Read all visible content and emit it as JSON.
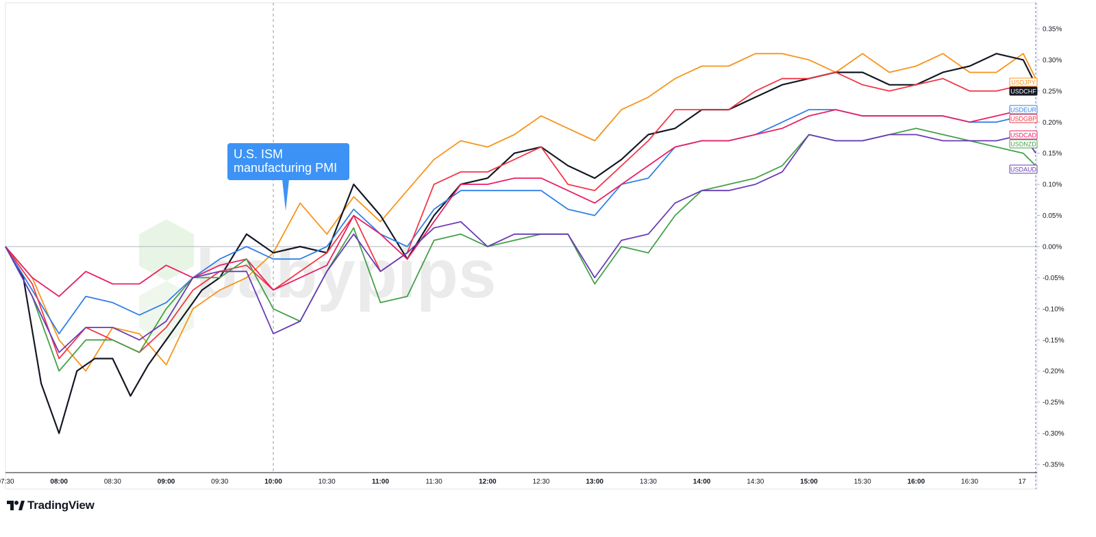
{
  "chart_data": {
    "type": "line",
    "title": "",
    "xlabel": "",
    "ylabel": "",
    "x_ticks": [
      "07:30",
      "08:00",
      "08:30",
      "09:00",
      "09:30",
      "10:00",
      "10:30",
      "11:00",
      "11:30",
      "12:00",
      "12:30",
      "13:00",
      "13:30",
      "14:00",
      "14:30",
      "15:00",
      "15:30",
      "16:00",
      "16:30",
      "17"
    ],
    "y_ticks": [
      "0.35%",
      "0.30%",
      "0.25%",
      "0.20%",
      "0.15%",
      "0.10%",
      "0.05%",
      "0.00%",
      "-0.05%",
      "-0.10%",
      "-0.15%",
      "-0.20%",
      "-0.25%",
      "-0.30%",
      "-0.35%"
    ],
    "y_tick_values": [
      0.35,
      0.3,
      0.25,
      0.2,
      0.15,
      0.1,
      0.05,
      0.0,
      -0.05,
      -0.1,
      -0.15,
      -0.2,
      -0.25,
      -0.3,
      -0.35
    ],
    "ylim": [
      -0.36,
      0.39
    ],
    "x_range_minutes": [
      0,
      577
    ],
    "zero_line": 0.0,
    "event_marker_minute": 150,
    "grid": false,
    "legend": "right-edge labels",
    "series": [
      {
        "name": "USDJPY",
        "color": "#f7931a",
        "x": [
          0,
          15,
          30,
          45,
          60,
          75,
          90,
          105,
          120,
          135,
          150,
          165,
          180,
          195,
          210,
          225,
          240,
          255,
          270,
          285,
          300,
          315,
          330,
          345,
          360,
          375,
          390,
          405,
          420,
          435,
          450,
          465,
          480,
          495,
          510,
          525,
          540,
          555,
          570,
          577
        ],
        "y": [
          0.0,
          -0.05,
          -0.15,
          -0.2,
          -0.13,
          -0.14,
          -0.19,
          -0.1,
          -0.07,
          -0.05,
          -0.01,
          0.07,
          0.02,
          0.08,
          0.04,
          0.09,
          0.14,
          0.17,
          0.16,
          0.18,
          0.21,
          0.19,
          0.17,
          0.22,
          0.24,
          0.27,
          0.29,
          0.29,
          0.31,
          0.31,
          0.3,
          0.28,
          0.31,
          0.28,
          0.29,
          0.31,
          0.28,
          0.28,
          0.31,
          0.27
        ]
      },
      {
        "name": "USDCHF",
        "color": "#131722",
        "x": [
          0,
          10,
          20,
          30,
          40,
          50,
          60,
          70,
          80,
          90,
          100,
          110,
          120,
          135,
          150,
          165,
          180,
          195,
          210,
          225,
          240,
          255,
          270,
          285,
          300,
          315,
          330,
          345,
          360,
          375,
          390,
          405,
          420,
          435,
          450,
          465,
          480,
          495,
          510,
          525,
          540,
          555,
          570,
          577
        ],
        "y": [
          0.0,
          -0.05,
          -0.22,
          -0.3,
          -0.2,
          -0.18,
          -0.18,
          -0.24,
          -0.19,
          -0.15,
          -0.11,
          -0.07,
          -0.05,
          0.02,
          -0.01,
          0.0,
          -0.01,
          0.1,
          0.05,
          -0.02,
          0.05,
          0.1,
          0.11,
          0.15,
          0.16,
          0.13,
          0.11,
          0.14,
          0.18,
          0.19,
          0.22,
          0.22,
          0.24,
          0.26,
          0.27,
          0.28,
          0.28,
          0.26,
          0.26,
          0.28,
          0.29,
          0.31,
          0.3,
          0.26
        ]
      },
      {
        "name": "USDEUR",
        "color": "#2f7fe8",
        "x": [
          0,
          15,
          30,
          45,
          60,
          75,
          90,
          105,
          120,
          135,
          150,
          165,
          180,
          195,
          210,
          225,
          240,
          255,
          270,
          285,
          300,
          315,
          330,
          345,
          360,
          375,
          390,
          405,
          420,
          435,
          450,
          465,
          480,
          495,
          510,
          525,
          540,
          555,
          570,
          577
        ],
        "y": [
          0.0,
          -0.07,
          -0.14,
          -0.08,
          -0.09,
          -0.11,
          -0.09,
          -0.05,
          -0.02,
          0.0,
          -0.02,
          -0.02,
          0.0,
          0.06,
          0.02,
          0.0,
          0.06,
          0.09,
          0.09,
          0.09,
          0.09,
          0.06,
          0.05,
          0.1,
          0.11,
          0.16,
          0.17,
          0.17,
          0.18,
          0.2,
          0.22,
          0.22,
          0.21,
          0.21,
          0.21,
          0.21,
          0.2,
          0.2,
          0.21,
          0.22
        ]
      },
      {
        "name": "USDGBP",
        "color": "#f23645",
        "x": [
          0,
          15,
          30,
          45,
          60,
          75,
          90,
          105,
          120,
          135,
          150,
          165,
          180,
          195,
          210,
          225,
          240,
          255,
          270,
          285,
          300,
          315,
          330,
          345,
          360,
          375,
          390,
          405,
          420,
          435,
          450,
          465,
          480,
          495,
          510,
          525,
          540,
          555,
          570,
          577
        ],
        "y": [
          0.0,
          -0.06,
          -0.18,
          -0.13,
          -0.15,
          -0.17,
          -0.13,
          -0.07,
          -0.04,
          -0.03,
          -0.07,
          -0.04,
          -0.01,
          0.05,
          -0.04,
          -0.01,
          0.1,
          0.12,
          0.12,
          0.14,
          0.16,
          0.1,
          0.09,
          0.13,
          0.17,
          0.22,
          0.22,
          0.22,
          0.25,
          0.27,
          0.27,
          0.28,
          0.26,
          0.25,
          0.26,
          0.27,
          0.25,
          0.25,
          0.26,
          0.25
        ]
      },
      {
        "name": "USDCAD",
        "color": "#e91e63",
        "x": [
          0,
          15,
          30,
          45,
          60,
          75,
          90,
          105,
          120,
          135,
          150,
          165,
          180,
          195,
          210,
          225,
          240,
          255,
          270,
          285,
          300,
          315,
          330,
          345,
          360,
          375,
          390,
          405,
          420,
          435,
          450,
          465,
          480,
          495,
          510,
          525,
          540,
          555,
          570,
          577
        ],
        "y": [
          0.0,
          -0.05,
          -0.08,
          -0.04,
          -0.06,
          -0.06,
          -0.03,
          -0.05,
          -0.03,
          -0.02,
          -0.07,
          -0.05,
          -0.03,
          0.05,
          0.02,
          -0.02,
          0.04,
          0.1,
          0.1,
          0.11,
          0.11,
          0.09,
          0.07,
          0.1,
          0.13,
          0.16,
          0.17,
          0.17,
          0.18,
          0.19,
          0.21,
          0.22,
          0.21,
          0.21,
          0.21,
          0.21,
          0.2,
          0.21,
          0.22,
          0.22
        ]
      },
      {
        "name": "USDNZD",
        "color": "#43a047",
        "x": [
          0,
          15,
          30,
          45,
          60,
          75,
          90,
          105,
          120,
          135,
          150,
          165,
          180,
          195,
          210,
          225,
          240,
          255,
          270,
          285,
          300,
          315,
          330,
          345,
          360,
          375,
          390,
          405,
          420,
          435,
          450,
          465,
          480,
          495,
          510,
          525,
          540,
          555,
          570,
          577
        ],
        "y": [
          0.0,
          -0.08,
          -0.2,
          -0.15,
          -0.15,
          -0.17,
          -0.1,
          -0.05,
          -0.05,
          -0.02,
          -0.1,
          -0.12,
          -0.04,
          0.03,
          -0.09,
          -0.08,
          0.01,
          0.02,
          0.0,
          0.01,
          0.02,
          0.02,
          -0.06,
          0.0,
          -0.01,
          0.05,
          0.09,
          0.1,
          0.11,
          0.13,
          0.18,
          0.17,
          0.17,
          0.18,
          0.19,
          0.18,
          0.17,
          0.16,
          0.15,
          0.13
        ]
      },
      {
        "name": "USDAUD",
        "color": "#673ab7",
        "x": [
          0,
          15,
          30,
          45,
          60,
          75,
          90,
          105,
          120,
          135,
          150,
          165,
          180,
          195,
          210,
          225,
          240,
          255,
          270,
          285,
          300,
          315,
          330,
          345,
          360,
          375,
          390,
          405,
          420,
          435,
          450,
          465,
          480,
          495,
          510,
          525,
          540,
          555,
          570,
          577
        ],
        "y": [
          0.0,
          -0.08,
          -0.17,
          -0.13,
          -0.13,
          -0.15,
          -0.12,
          -0.05,
          -0.04,
          -0.04,
          -0.14,
          -0.12,
          -0.04,
          0.02,
          -0.04,
          -0.01,
          0.03,
          0.04,
          0.0,
          0.02,
          0.02,
          0.02,
          -0.05,
          0.01,
          0.02,
          0.07,
          0.09,
          0.09,
          0.1,
          0.12,
          0.18,
          0.17,
          0.17,
          0.18,
          0.18,
          0.17,
          0.17,
          0.17,
          0.18,
          0.15
        ]
      }
    ],
    "annotation": {
      "line1": "U.S. ISM",
      "line2": "manufacturing PMI"
    }
  },
  "brand": {
    "name": "TradingView"
  }
}
